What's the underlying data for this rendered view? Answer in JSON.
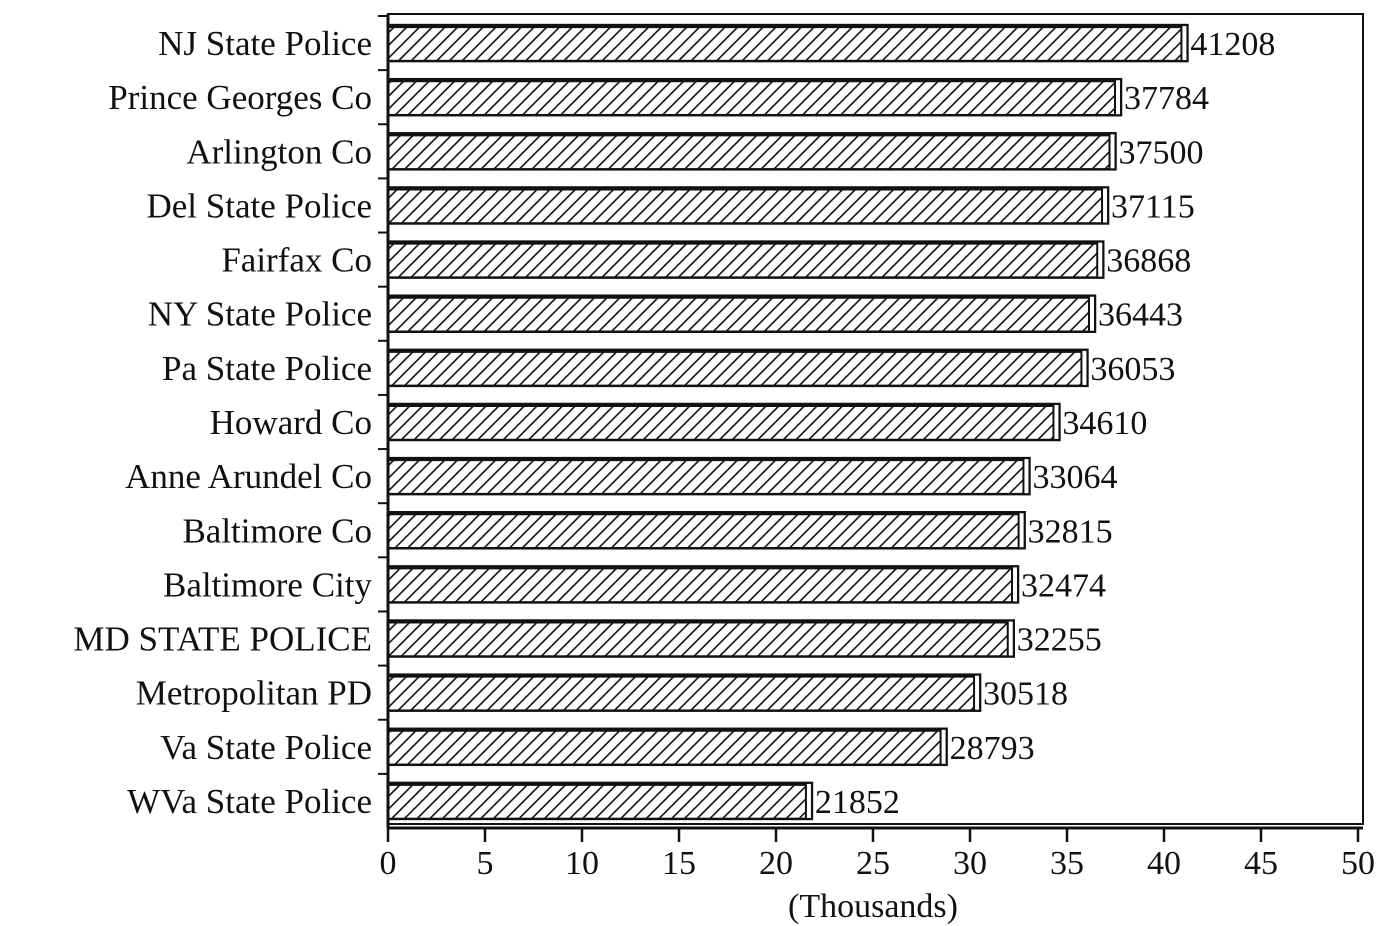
{
  "chart_data": {
    "type": "bar",
    "orientation": "horizontal",
    "categories": [
      "NJ State Police",
      "Prince Georges Co",
      "Arlington Co",
      "Del State Police",
      "Fairfax Co",
      "NY State Police",
      "Pa State Police",
      "Howard Co",
      "Anne Arundel Co",
      "Baltimore Co",
      "Baltimore City",
      "MD STATE POLICE",
      "Metropolitan PD",
      "Va State Police",
      "WVa State Police"
    ],
    "values": [
      41208,
      37784,
      37500,
      37115,
      36868,
      36443,
      36053,
      34610,
      33064,
      32815,
      32474,
      32255,
      30518,
      28793,
      21852
    ],
    "value_labels": [
      "41208",
      "37784",
      "37500",
      "37115",
      "36868",
      "36443",
      "36053",
      "34610",
      "33064",
      "32815",
      "32474",
      "32255",
      "30518",
      "28793",
      "21852"
    ],
    "xlabel": "(Thousands)",
    "xlim": [
      0,
      50
    ],
    "x_ticks": [
      0,
      5,
      10,
      15,
      20,
      25,
      30,
      35,
      40,
      45,
      50
    ],
    "x_tick_labels": [
      "0",
      "5",
      "10",
      "15",
      "20",
      "25",
      "30",
      "35",
      "40",
      "45",
      "50"
    ],
    "grid": false,
    "bar_pattern": "diagonal-hatch",
    "colors": {
      "ink": "#111111",
      "background": "#ffffff"
    }
  }
}
